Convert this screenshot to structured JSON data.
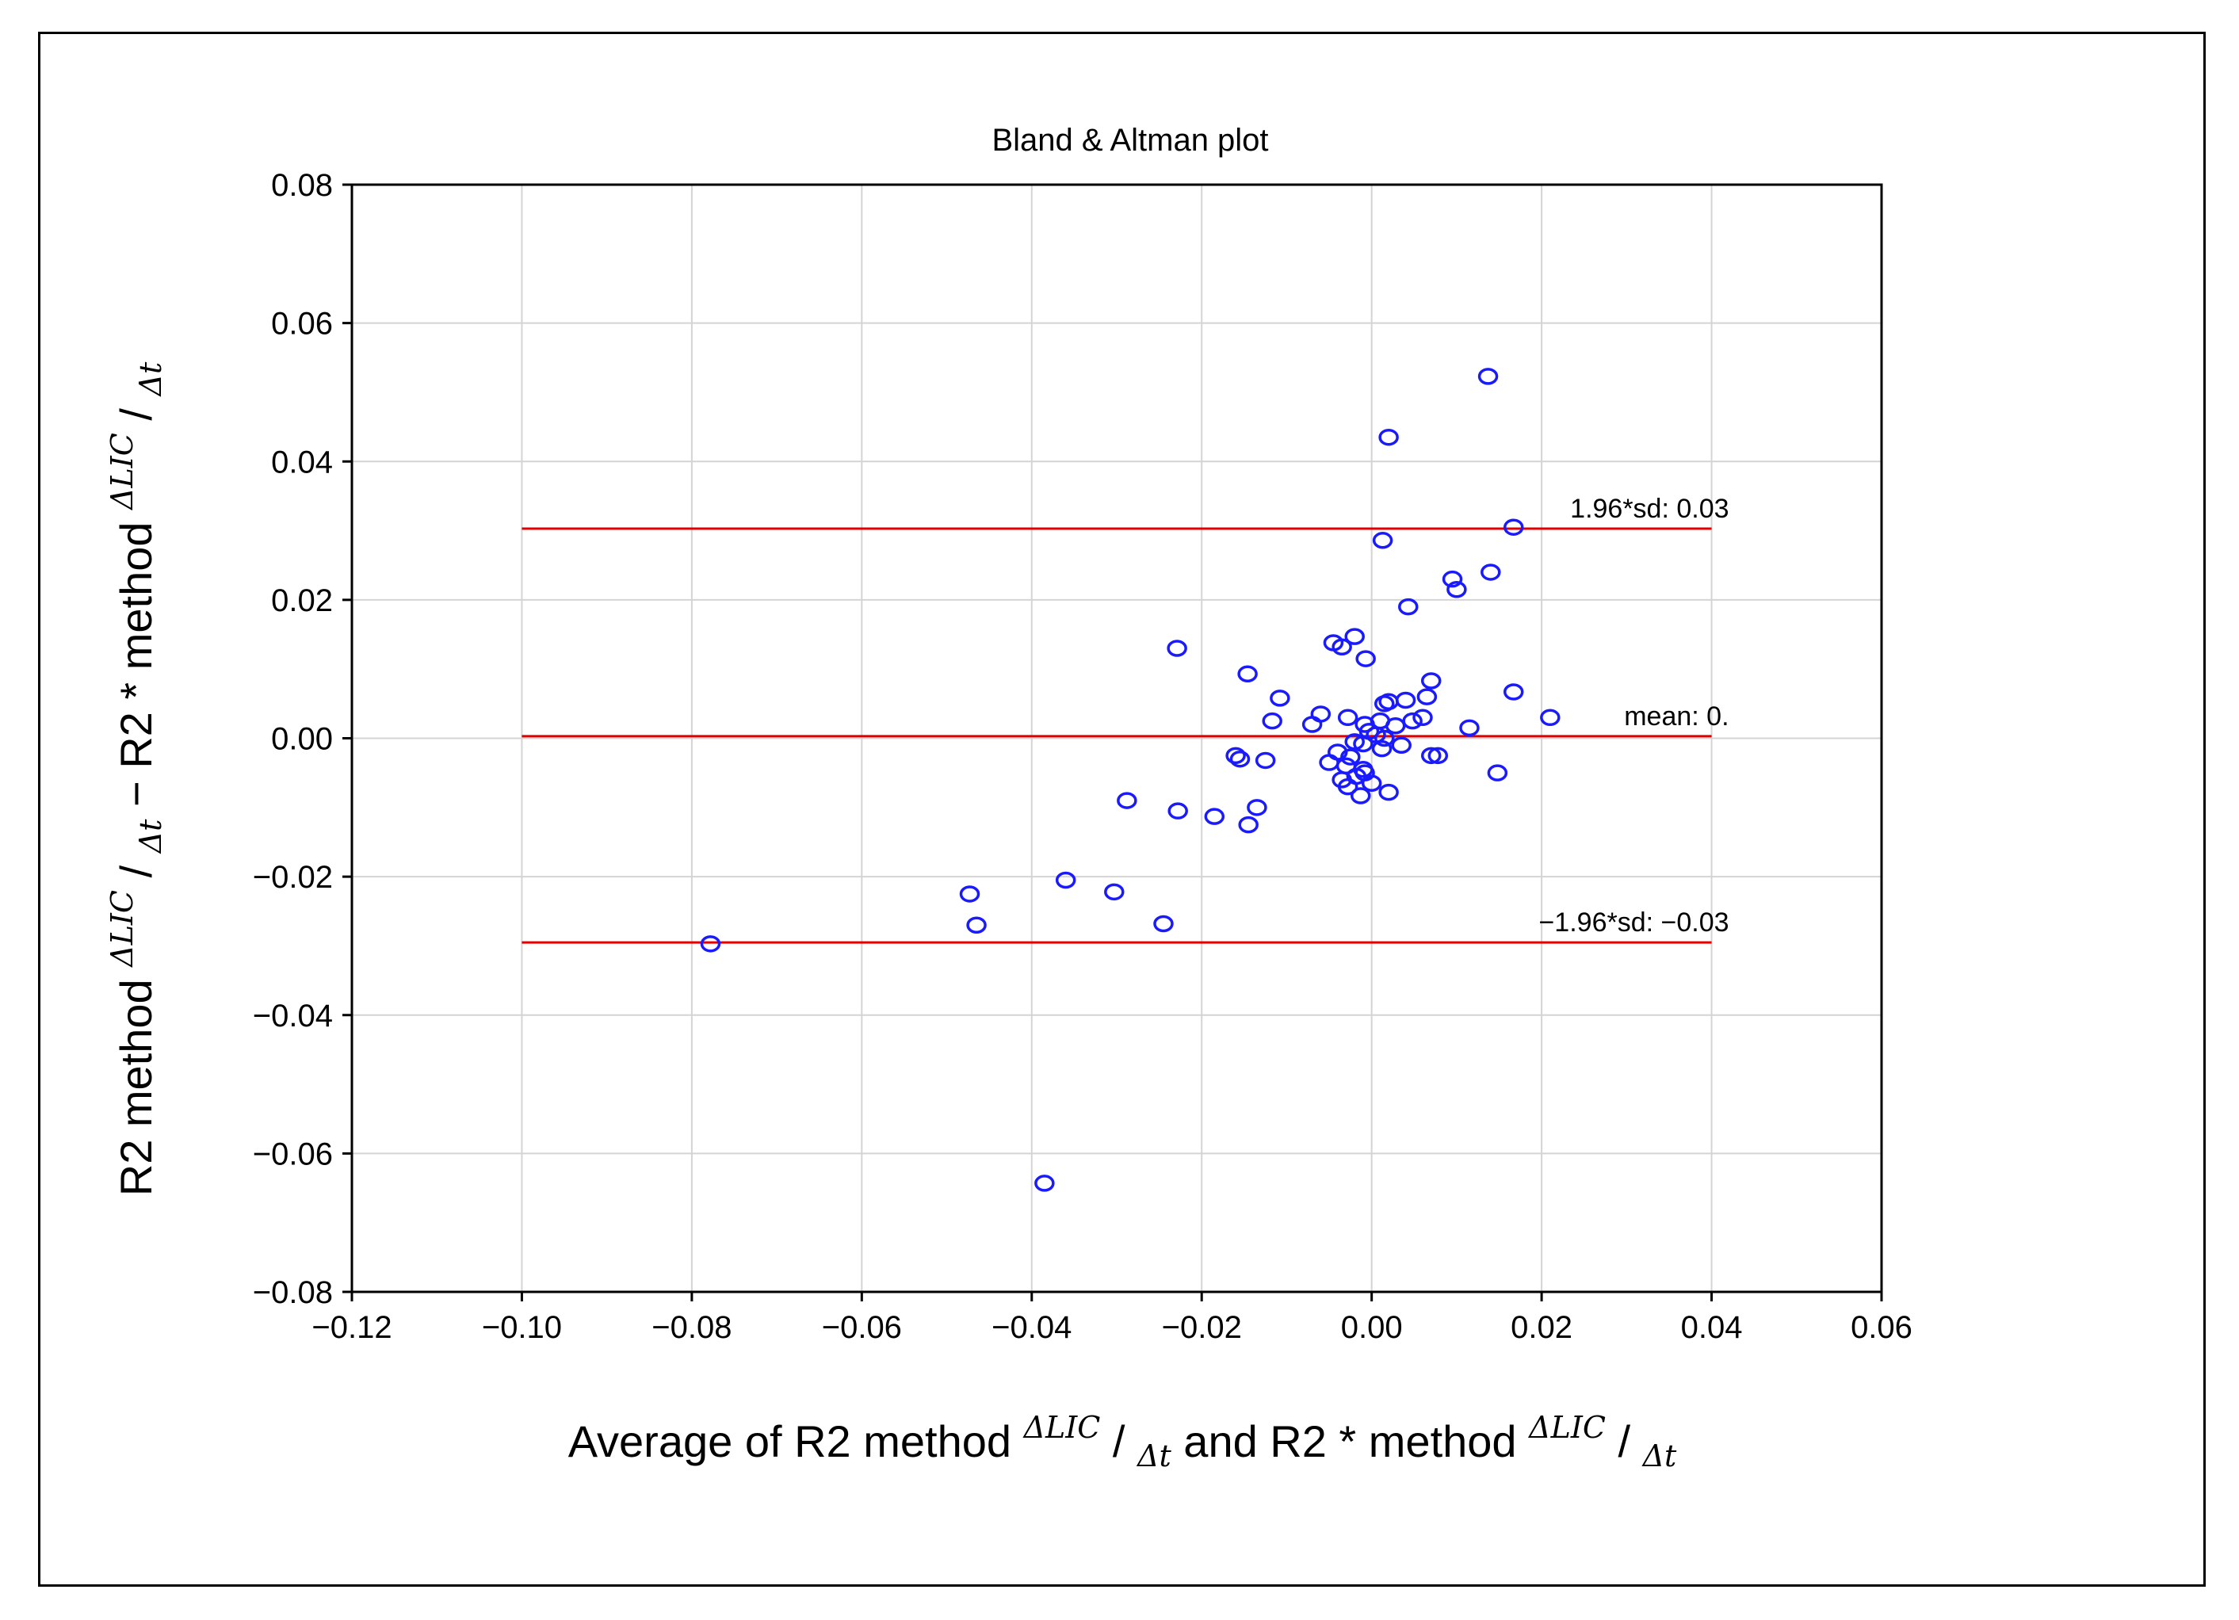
{
  "chart_data": {
    "type": "scatter",
    "title": "Bland & Altman plot",
    "xlabel": "Average of R2 method ΔLIC/Δt and R2 * method ΔLIC/Δt",
    "xlabel_parts": {
      "pre": "Average of R2 method ",
      "num": "ΔLIC",
      "den": "Δt",
      "mid": " and R2 * method ",
      "num2": "ΔLIC",
      "den2": "Δt"
    },
    "ylabel": "R2 method ΔLIC/Δt − R2 * method ΔLIC/Δt",
    "ylabel_parts": {
      "pre": "R2 method ",
      "num": "ΔLIC",
      "den": "Δt",
      "mid": " − R2 * method ",
      "num2": "ΔLIC",
      "den2": "Δt"
    },
    "xlim": [
      -0.12,
      0.06
    ],
    "ylim": [
      -0.08,
      0.08
    ],
    "xticks": [
      -0.12,
      -0.1,
      -0.08,
      -0.06,
      -0.04,
      -0.02,
      0.0,
      0.02,
      0.04,
      0.06
    ],
    "xtick_labels": [
      "−0.12",
      "−0.10",
      "−0.08",
      "−0.06",
      "−0.04",
      "−0.02",
      "0.00",
      "0.02",
      "0.04",
      "0.06"
    ],
    "yticks": [
      0.08,
      0.06,
      0.04,
      0.02,
      0.0,
      -0.02,
      -0.04,
      -0.06,
      -0.08
    ],
    "ytick_labels": [
      "0.08",
      "0.06",
      "0.04",
      "0.02",
      "0.00",
      "−0.02",
      "−0.04",
      "−0.06",
      "−0.08"
    ],
    "grid": true,
    "point_color": "#1a1aff",
    "line_color": "#e00000",
    "reference_lines": [
      {
        "name": "upper-limit",
        "y": 0.0303,
        "x_range": [
          -0.1,
          0.04
        ],
        "label": "1.96*sd: 0.03"
      },
      {
        "name": "mean",
        "y": 0.0003,
        "x_range": [
          -0.1,
          0.04
        ],
        "label": "mean: 0."
      },
      {
        "name": "lower-limit",
        "y": -0.0295,
        "x_range": [
          -0.1,
          0.04
        ],
        "label": "−1.96*sd: −0.03"
      }
    ],
    "points": [
      [
        0.0137,
        0.0523
      ],
      [
        0.002,
        0.0435
      ],
      [
        0.0167,
        0.0305
      ],
      [
        0.0013,
        0.0286
      ],
      [
        0.0095,
        0.023
      ],
      [
        0.014,
        0.024
      ],
      [
        0.01,
        0.0215
      ],
      [
        0.0043,
        0.019
      ],
      [
        -0.0229,
        0.013
      ],
      [
        -0.0045,
        0.0138
      ],
      [
        -0.002,
        0.0147
      ],
      [
        -0.0035,
        0.0132
      ],
      [
        -0.0007,
        0.0115
      ],
      [
        -0.0146,
        0.0093
      ],
      [
        0.007,
        0.0083
      ],
      [
        0.0167,
        0.0067
      ],
      [
        -0.0108,
        0.0058
      ],
      [
        0.0065,
        0.006
      ],
      [
        0.004,
        0.0055
      ],
      [
        0.002,
        0.0053
      ],
      [
        0.0015,
        0.005
      ],
      [
        -0.006,
        0.0035
      ],
      [
        0.021,
        0.003
      ],
      [
        -0.0028,
        0.003
      ],
      [
        0.006,
        0.003
      ],
      [
        -0.0117,
        0.0025
      ],
      [
        -0.007,
        0.002
      ],
      [
        0.0048,
        0.0025
      ],
      [
        0.001,
        0.0025
      ],
      [
        0.0115,
        0.0015
      ],
      [
        -0.0008,
        0.002
      ],
      [
        0.0028,
        0.0018
      ],
      [
        -0.0003,
        0.001
      ],
      [
        0.0005,
        0.0005
      ],
      [
        0.0015,
        0.0
      ],
      [
        -0.002,
        -0.0005
      ],
      [
        0.0035,
        -0.001
      ],
      [
        -0.001,
        -0.0008
      ],
      [
        0.0012,
        -0.0015
      ],
      [
        -0.004,
        -0.002
      ],
      [
        -0.016,
        -0.0025
      ],
      [
        -0.0155,
        -0.003
      ],
      [
        -0.0125,
        -0.0032
      ],
      [
        -0.0025,
        -0.0027
      ],
      [
        0.007,
        -0.0025
      ],
      [
        0.0078,
        -0.0025
      ],
      [
        -0.005,
        -0.0035
      ],
      [
        -0.003,
        -0.004
      ],
      [
        -0.001,
        -0.0045
      ],
      [
        -0.0018,
        -0.0055
      ],
      [
        -0.0035,
        -0.006
      ],
      [
        -0.0008,
        -0.005
      ],
      [
        0.0148,
        -0.005
      ],
      [
        -0.0028,
        -0.007
      ],
      [
        0.0,
        -0.0065
      ],
      [
        -0.0013,
        -0.0083
      ],
      [
        0.002,
        -0.0078
      ],
      [
        -0.0288,
        -0.009
      ],
      [
        -0.0135,
        -0.01
      ],
      [
        -0.0228,
        -0.0105
      ],
      [
        -0.0185,
        -0.0113
      ],
      [
        -0.0145,
        -0.0125
      ],
      [
        -0.036,
        -0.0205
      ],
      [
        -0.0303,
        -0.0222
      ],
      [
        -0.0473,
        -0.0225
      ],
      [
        -0.0245,
        -0.0268
      ],
      [
        -0.0465,
        -0.027
      ],
      [
        -0.0778,
        -0.0297
      ],
      [
        -0.0385,
        -0.0643
      ]
    ]
  }
}
